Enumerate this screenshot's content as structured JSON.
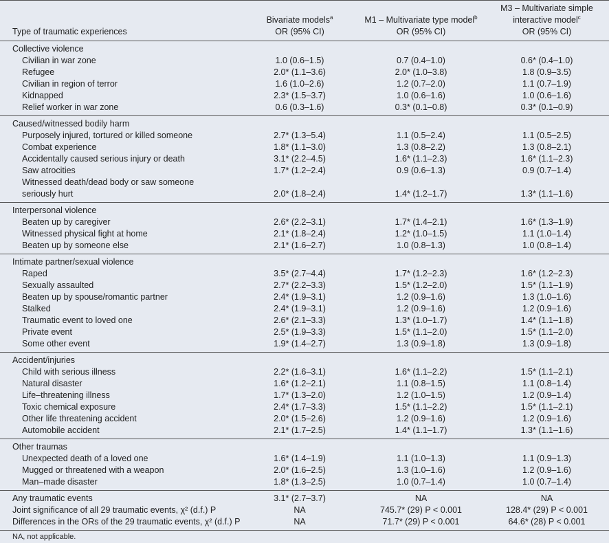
{
  "header": {
    "label": "Type of traumatic experiences",
    "columns": [
      {
        "title": [
          "Bivariate models"
        ],
        "note": "a",
        "subtitle": "OR (95% CI)"
      },
      {
        "title": [
          "M1 – Multivariate type model"
        ],
        "note": "b",
        "subtitle": "OR (95% CI)"
      },
      {
        "title": [
          "M3 – Multivariate simple",
          "interactive model"
        ],
        "note": "c",
        "subtitle": "OR (95% CI)"
      }
    ]
  },
  "groups": [
    {
      "title": "Collective violence",
      "rows": [
        {
          "label": [
            "Civilian in war zone"
          ],
          "cells": [
            "1.0 (0.6–1.5)",
            "0.7 (0.4–1.0)",
            "0.6* (0.4–1.0)"
          ]
        },
        {
          "label": [
            "Refugee"
          ],
          "cells": [
            "2.0* (1.1–3.6)",
            "2.0* (1.0–3.8)",
            "1.8 (0.9–3.5)"
          ]
        },
        {
          "label": [
            "Civilian in region of terror"
          ],
          "cells": [
            "1.6 (1.0–2.6)",
            "1.2 (0.7–2.0)",
            "1.1 (0.7–1.9)"
          ]
        },
        {
          "label": [
            "Kidnapped"
          ],
          "cells": [
            "2.3* (1.5–3.7)",
            "1.0 (0.6–1.6)",
            "1.0 (0.6–1.6)"
          ]
        },
        {
          "label": [
            "Relief worker in war zone"
          ],
          "cells": [
            "0.6 (0.3–1.6)",
            "0.3* (0.1–0.8)",
            "0.3* (0.1–0.9)"
          ]
        }
      ]
    },
    {
      "title": "Caused/witnessed bodily harm",
      "rows": [
        {
          "label": [
            "Purposely injured, tortured or killed someone"
          ],
          "cells": [
            "2.7* (1.3–5.4)",
            "1.1 (0.5–2.4)",
            "1.1 (0.5–2.5)"
          ]
        },
        {
          "label": [
            "Combat experience"
          ],
          "cells": [
            "1.8* (1.1–3.0)",
            "1.3 (0.8–2.2)",
            "1.3 (0.8–2.1)"
          ]
        },
        {
          "label": [
            "Accidentally caused serious injury or death"
          ],
          "cells": [
            "3.1* (2.2–4.5)",
            "1.6* (1.1–2.3)",
            "1.6* (1.1–2.3)"
          ]
        },
        {
          "label": [
            "Saw atrocities"
          ],
          "cells": [
            "1.7* (1.2–2.4)",
            "0.9 (0.6–1.3)",
            "0.9 (0.7–1.4)"
          ]
        },
        {
          "label": [
            "Witnessed death/dead body or saw someone",
            "seriously hurt"
          ],
          "cells": [
            "2.0* (1.8–2.4)",
            "1.4* (1.2–1.7)",
            "1.3* (1.1–1.6)"
          ]
        }
      ]
    },
    {
      "title": "Interpersonal violence",
      "rows": [
        {
          "label": [
            "Beaten up by caregiver"
          ],
          "cells": [
            "2.6* (2.2–3.1)",
            "1.7* (1.4–2.1)",
            "1.6* (1.3–1.9)"
          ]
        },
        {
          "label": [
            "Witnessed physical fight at home"
          ],
          "cells": [
            "2.1* (1.8–2.4)",
            "1.2* (1.0–1.5)",
            "1.1 (1.0–1.4)"
          ]
        },
        {
          "label": [
            "Beaten up by someone else"
          ],
          "cells": [
            "2.1* (1.6–2.7)",
            "1.0 (0.8–1.3)",
            "1.0 (0.8–1.4)"
          ]
        }
      ]
    },
    {
      "title": "Intimate partner/sexual violence",
      "rows": [
        {
          "label": [
            "Raped"
          ],
          "cells": [
            "3.5* (2.7–4.4)",
            "1.7* (1.2–2.3)",
            "1.6* (1.2–2.3)"
          ]
        },
        {
          "label": [
            "Sexually assaulted"
          ],
          "cells": [
            "2.7* (2.2–3.3)",
            "1.5* (1.2–2.0)",
            "1.5* (1.1–1.9)"
          ]
        },
        {
          "label": [
            "Beaten up by spouse/romantic partner"
          ],
          "cells": [
            "2.4* (1.9–3.1)",
            "1.2 (0.9–1.6)",
            "1.3 (1.0–1.6)"
          ]
        },
        {
          "label": [
            "Stalked"
          ],
          "cells": [
            "2.4* (1.9–3.1)",
            "1.2 (0.9–1.6)",
            "1.2 (0.9–1.6)"
          ]
        },
        {
          "label": [
            "Traumatic event to loved one"
          ],
          "cells": [
            "2.6* (2.1–3.3)",
            "1.3* (1.0–1.7)",
            "1.4* (1.1–1.8)"
          ]
        },
        {
          "label": [
            "Private event"
          ],
          "cells": [
            "2.5* (1.9–3.3)",
            "1.5* (1.1–2.0)",
            "1.5* (1.1–2.0)"
          ]
        },
        {
          "label": [
            "Some other event"
          ],
          "cells": [
            "1.9* (1.4–2.7)",
            "1.3 (0.9–1.8)",
            "1.3 (0.9–1.8)"
          ]
        }
      ]
    },
    {
      "title": "Accident/injuries",
      "rows": [
        {
          "label": [
            "Child with serious illness"
          ],
          "cells": [
            "2.2* (1.6–3.1)",
            "1.6* (1.1–2.2)",
            "1.5* (1.1–2.1)"
          ]
        },
        {
          "label": [
            "Natural disaster"
          ],
          "cells": [
            "1.6* (1.2–2.1)",
            "1.1 (0.8–1.5)",
            "1.1 (0.8–1.4)"
          ]
        },
        {
          "label": [
            "Life–threatening illness"
          ],
          "cells": [
            "1.7* (1.3–2.0)",
            "1.2 (1.0–1.5)",
            "1.2 (0.9–1.4)"
          ]
        },
        {
          "label": [
            "Toxic chemical exposure"
          ],
          "cells": [
            "2.4* (1.7–3.3)",
            "1.5* (1.1–2.2)",
            "1.5* (1.1–2.1)"
          ]
        },
        {
          "label": [
            "Other life threatening accident"
          ],
          "cells": [
            "2.0* (1.5–2.6)",
            "1.2 (0.9–1.6)",
            "1.2 (0.9–1.6)"
          ]
        },
        {
          "label": [
            "Automobile accident"
          ],
          "cells": [
            "2.1* (1.7–2.5)",
            "1.4* (1.1–1.7)",
            "1.3* (1.1–1.6)"
          ]
        }
      ]
    },
    {
      "title": "Other traumas",
      "rows": [
        {
          "label": [
            "Unexpected death of a loved one"
          ],
          "cells": [
            "1.6* (1.4–1.9)",
            "1.1 (1.0–1.3)",
            "1.1 (0.9–1.3)"
          ]
        },
        {
          "label": [
            "Mugged or threatened with a weapon"
          ],
          "cells": [
            "2.0* (1.6–2.5)",
            "1.3 (1.0–1.6)",
            "1.2 (0.9–1.6)"
          ]
        },
        {
          "label": [
            "Man–made disaster"
          ],
          "cells": [
            "1.8* (1.3–2.5)",
            "1.0 (0.7–1.4)",
            "1.0 (0.7–1.4)"
          ]
        }
      ]
    }
  ],
  "summary": [
    {
      "label": [
        "Any traumatic events"
      ],
      "cells": [
        "3.1* (2.7–3.7)",
        "NA",
        "NA"
      ]
    },
    {
      "label": [
        "Joint significance of all 29 traumatic events, χ² (d.f.) P"
      ],
      "cells": [
        "NA",
        "745.7* (29) P < 0.001",
        "128.4* (29) P < 0.001"
      ]
    },
    {
      "label": [
        "Differences in the ORs of the 29 traumatic events, χ² (d.f.) P"
      ],
      "cells": [
        "NA",
        "71.7* (29) P < 0.001",
        "64.6* (28) P < 0.001"
      ]
    }
  ],
  "footnote": "NA, not applicable."
}
